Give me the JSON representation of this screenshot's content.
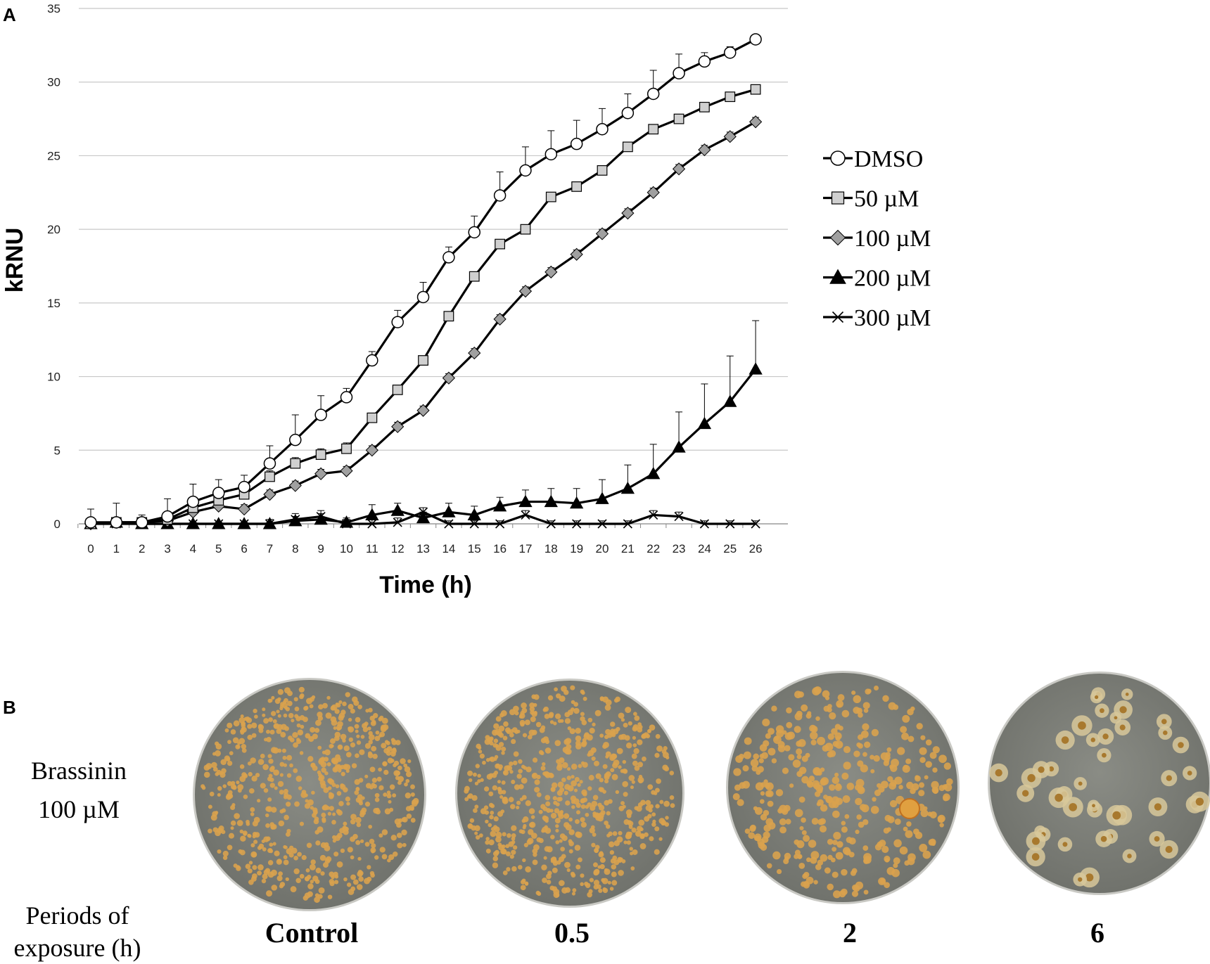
{
  "panels": {
    "a": "A",
    "b": "B"
  },
  "chart_data": {
    "type": "line",
    "title": "",
    "xlabel": "Time (h)",
    "ylabel": "kRNU",
    "ylim": [
      0,
      35
    ],
    "yticks": [
      0,
      5,
      10,
      15,
      20,
      25,
      30,
      35
    ],
    "grid": "horizontal",
    "legend_position": "right",
    "x": [
      0,
      1,
      2,
      3,
      4,
      5,
      6,
      7,
      8,
      9,
      10,
      11,
      12,
      13,
      14,
      15,
      16,
      17,
      18,
      19,
      20,
      21,
      22,
      23,
      24,
      25,
      26
    ],
    "series": [
      {
        "name": "DMSO",
        "marker": "circle",
        "fill": "#ffffff",
        "values": [
          0.1,
          0.1,
          0.1,
          0.5,
          1.5,
          2.1,
          2.5,
          4.1,
          5.7,
          7.4,
          8.6,
          11.1,
          13.7,
          15.4,
          18.1,
          19.8,
          22.3,
          24.0,
          25.1,
          25.8,
          26.8,
          27.9,
          29.2,
          30.6,
          31.4,
          32.0,
          32.9
        ],
        "errors": [
          0.9,
          1.3,
          0.5,
          1.2,
          1.2,
          0.9,
          0.8,
          1.2,
          1.7,
          1.3,
          0.6,
          0.6,
          0.8,
          1.0,
          0.7,
          1.1,
          1.6,
          1.6,
          1.6,
          1.6,
          1.4,
          1.3,
          1.6,
          1.3,
          0.6,
          0.4,
          0.2
        ]
      },
      {
        "name": "50 µM",
        "marker": "square",
        "fill": "#d0d0d0",
        "values": [
          0.0,
          0.1,
          0.1,
          0.3,
          1.1,
          1.6,
          2.0,
          3.2,
          4.1,
          4.7,
          5.1,
          7.2,
          9.1,
          11.1,
          14.1,
          16.8,
          19.0,
          20.0,
          22.2,
          22.9,
          24.0,
          25.6,
          26.8,
          27.5,
          28.3,
          29.0,
          29.5
        ],
        "errors": [
          0.2,
          0.2,
          0.2,
          0.3,
          0.3,
          0.3,
          0.4,
          0.4,
          0.4,
          0.4,
          0.4,
          0.3,
          0.3,
          0.3,
          0.3,
          0.3,
          0.3,
          0.3,
          0.3,
          0.3,
          0.3,
          0.3,
          0.3,
          0.3,
          0.3,
          0.3,
          0.3
        ]
      },
      {
        "name": "100 µM",
        "marker": "diamond",
        "fill": "#a0a0a0",
        "values": [
          0.0,
          0.1,
          0.1,
          0.2,
          0.8,
          1.2,
          1.0,
          2.0,
          2.6,
          3.4,
          3.6,
          5.0,
          6.6,
          7.7,
          9.9,
          11.6,
          13.9,
          15.8,
          17.1,
          18.3,
          19.7,
          21.1,
          22.5,
          24.1,
          25.4,
          26.3,
          27.3
        ],
        "errors": [
          0.2,
          0.2,
          0.2,
          0.2,
          0.3,
          0.3,
          0.3,
          0.3,
          0.3,
          0.3,
          0.3,
          0.3,
          0.3,
          0.3,
          0.3,
          0.3,
          0.3,
          0.3,
          0.3,
          0.3,
          0.3,
          0.3,
          0.3,
          0.3,
          0.3,
          0.3,
          0.3
        ]
      },
      {
        "name": "200 µM",
        "marker": "triangle",
        "fill": "#000000",
        "values": [
          0.0,
          0.1,
          0.0,
          0.0,
          0.0,
          0.0,
          0.0,
          0.0,
          0.2,
          0.3,
          0.1,
          0.6,
          0.9,
          0.4,
          0.8,
          0.6,
          1.2,
          1.5,
          1.5,
          1.4,
          1.7,
          2.4,
          3.4,
          5.2,
          6.8,
          8.3,
          10.5
        ],
        "errors": [
          0.1,
          0.1,
          0.1,
          0.1,
          0.1,
          0.1,
          0.1,
          0.1,
          0.3,
          0.4,
          0.3,
          0.7,
          0.5,
          0.4,
          0.6,
          0.6,
          0.6,
          0.8,
          0.9,
          1.0,
          1.3,
          1.6,
          2.0,
          2.4,
          2.7,
          3.1,
          3.3
        ]
      },
      {
        "name": "300 µM",
        "marker": "cross",
        "fill": "#000000",
        "values": [
          0.0,
          0.0,
          0.0,
          0.0,
          0.0,
          0.0,
          0.0,
          0.0,
          0.3,
          0.5,
          0.0,
          0.0,
          0.1,
          0.8,
          0.0,
          0.0,
          0.0,
          0.6,
          0.0,
          0.0,
          0.0,
          0.0,
          0.6,
          0.5,
          0.0,
          0.0,
          0.0
        ],
        "errors": [
          0.1,
          0.1,
          0.1,
          0.1,
          0.1,
          0.1,
          0.1,
          0.3,
          0.4,
          0.4,
          0.3,
          0.3,
          0.3,
          0.3,
          0.2,
          0.2,
          0.2,
          0.3,
          0.2,
          0.2,
          0.2,
          0.2,
          0.3,
          0.3,
          0.2,
          0.2,
          0.2
        ]
      }
    ]
  },
  "panel_b": {
    "row_label_line1": "Brassinin",
    "row_label_line2": "100 µM",
    "periods_label_line1": "Periods of",
    "periods_label_line2": "exposure (h)",
    "plates": [
      {
        "label": "Control",
        "colony_pattern": "dense-small"
      },
      {
        "label": "0.5",
        "colony_pattern": "dense-small"
      },
      {
        "label": "2",
        "colony_pattern": "medium"
      },
      {
        "label": "6",
        "colony_pattern": "sparse-large"
      }
    ]
  },
  "colors": {
    "line": "#000000",
    "grid": "#c8c8c8",
    "agar": "#6e706a",
    "colony": "#d9a24e",
    "rim": "#c9c9c4"
  }
}
